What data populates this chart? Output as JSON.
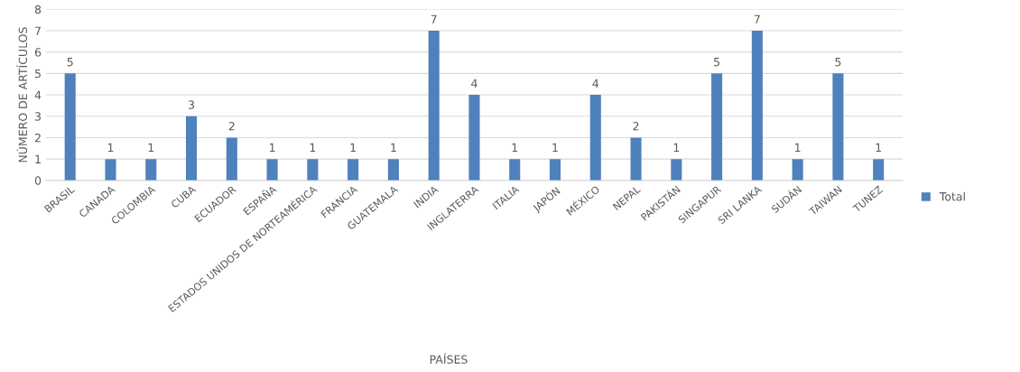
{
  "chart_data": {
    "type": "bar",
    "xlabel": "PAÍSES",
    "ylabel": "NÚMERO DE ARTÍCULOS",
    "categories": [
      "BRASIL",
      "CANADA",
      "COLOMBIA",
      "CUBA",
      "ECUADOR",
      "ESPAÑA",
      "ESTADOS UNIDOS DE NORTEAMÉRICA",
      "FRANCIA",
      "GUATEMALA",
      "INDIA",
      "INGLATERRA",
      "ITALIA",
      "JAPÓN",
      "MÉXICO",
      "NEPAL",
      "PAKISTÁN",
      "SINGAPUR",
      "SRI LANKA",
      "SUDÁN",
      "TAIWAN",
      "TUNEZ"
    ],
    "series": [
      {
        "name": "Total",
        "color": "#4f81bd",
        "values": [
          5,
          1,
          1,
          3,
          2,
          1,
          1,
          1,
          1,
          7,
          4,
          1,
          1,
          4,
          2,
          1,
          5,
          7,
          1,
          5,
          1
        ]
      }
    ],
    "ylim": [
      0,
      8
    ],
    "yticks": [
      0,
      1,
      2,
      3,
      4,
      5,
      6,
      7,
      8
    ],
    "grid": "y",
    "legend": "right",
    "data_labels": true
  }
}
